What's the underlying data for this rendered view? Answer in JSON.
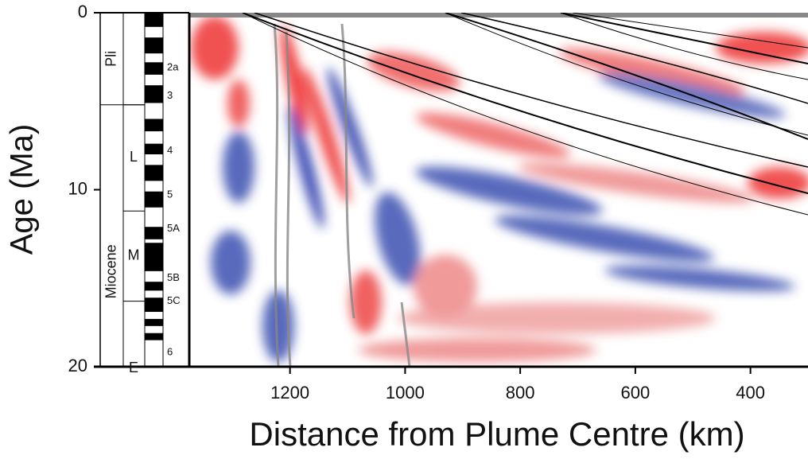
{
  "chart_data": {
    "type": "heatmap",
    "ylabel": "Age  (Ma)",
    "xlabel": "Distance from Plume Centre (km)",
    "xlim": [
      1375,
      300
    ],
    "xticks": [
      1200,
      1000,
      800,
      600,
      400
    ],
    "ylim": [
      0,
      20
    ],
    "yticks": [
      0,
      10,
      20
    ],
    "epochs": [
      {
        "name": "Pli",
        "top": 0,
        "base": 5.2
      },
      {
        "name": "Miocene",
        "top": 5.2,
        "base": 20
      }
    ],
    "stages": [
      {
        "name": "L",
        "top": 5.2,
        "base": 11.2
      },
      {
        "name": "M",
        "top": 11.2,
        "base": 16.3
      },
      {
        "name": "E",
        "top": 16.3,
        "base": 20
      }
    ],
    "chrons": [
      {
        "name": "2a",
        "age": 3.1
      },
      {
        "name": "3",
        "age": 4.7
      },
      {
        "name": "4",
        "age": 7.8
      },
      {
        "name": "5",
        "age": 10.3
      },
      {
        "name": "5A",
        "age": 12.2
      },
      {
        "name": "5B",
        "age": 15.0
      },
      {
        "name": "5C",
        "age": 16.3
      },
      {
        "name": "6",
        "age": 19.2
      }
    ],
    "polarity": [
      [
        0,
        0.8
      ],
      [
        1.4,
        2.3
      ],
      [
        2.8,
        3.5
      ],
      [
        4.1,
        5.1
      ],
      [
        6.0,
        6.7
      ],
      [
        7.4,
        8.0
      ],
      [
        8.6,
        9.5
      ],
      [
        10.1,
        11.0
      ],
      [
        12.1,
        12.8
      ],
      [
        13.0,
        14.6
      ],
      [
        15.2,
        15.7
      ],
      [
        16.1,
        16.9
      ],
      [
        17.3,
        17.7
      ],
      [
        18.1,
        18.5
      ]
    ]
  }
}
